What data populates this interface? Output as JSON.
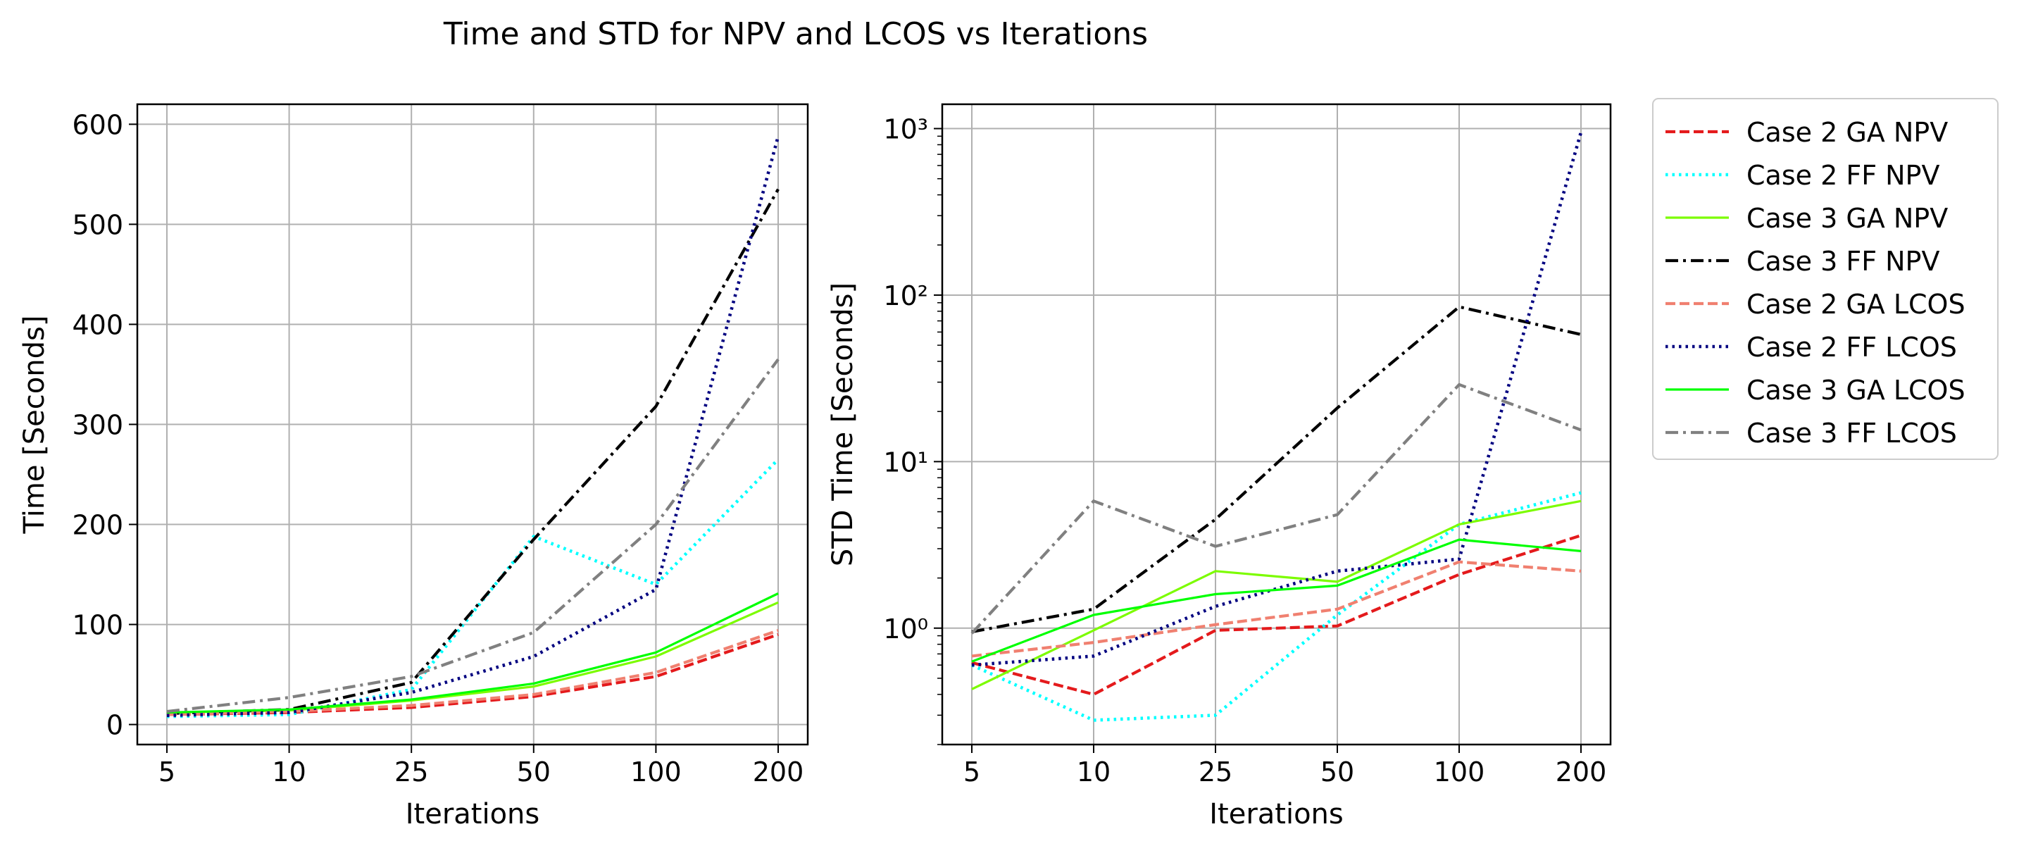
{
  "figure": {
    "title": "Time and STD for NPV and LCOS vs Iterations"
  },
  "legend": {
    "placement": "outside-right-top",
    "entries": [
      {
        "label": "Case 2 GA NPV",
        "color": "#e41a1c",
        "style": "dashed"
      },
      {
        "label": "Case 2 FF NPV",
        "color": "#00ffff",
        "style": "dotted"
      },
      {
        "label": "Case 3 GA NPV",
        "color": "#7cfc00",
        "style": "solid"
      },
      {
        "label": "Case 3 FF NPV",
        "color": "#000000",
        "style": "dashdot"
      },
      {
        "label": "Case 2 GA LCOS",
        "color": "#f08070",
        "style": "dashed"
      },
      {
        "label": "Case 2 FF LCOS",
        "color": "#000080",
        "style": "dotted"
      },
      {
        "label": "Case 3 GA LCOS",
        "color": "#00ff00",
        "style": "solid"
      },
      {
        "label": "Case 3 FF LCOS",
        "color": "#808080",
        "style": "dashdot"
      }
    ]
  },
  "chart_data": [
    {
      "type": "line",
      "title": "",
      "xlabel": "Iterations",
      "ylabel": "Time [Seconds]",
      "x_scale": "categorical",
      "y_scale": "linear",
      "categories": [
        "5",
        "10",
        "25",
        "50",
        "100",
        "200"
      ],
      "ylim": [
        -20,
        620
      ],
      "yticks": [
        0,
        100,
        200,
        300,
        400,
        500,
        600
      ],
      "ytick_labels": [
        "0",
        "100",
        "200",
        "300",
        "400",
        "500",
        "600"
      ],
      "grid": true,
      "series": [
        {
          "name": "Case 2 GA NPV",
          "values": [
            10,
            12,
            17,
            28,
            48,
            90
          ]
        },
        {
          "name": "Case 2 FF NPV",
          "values": [
            8,
            10,
            35,
            188,
            140,
            265
          ]
        },
        {
          "name": "Case 3 GA NPV",
          "values": [
            12,
            14,
            24,
            38,
            68,
            122
          ]
        },
        {
          "name": "Case 3 FF NPV",
          "values": [
            11,
            15,
            42,
            185,
            318,
            535
          ]
        },
        {
          "name": "Case 2 GA LCOS",
          "values": [
            10,
            13,
            19,
            30,
            52,
            94
          ]
        },
        {
          "name": "Case 2 FF LCOS",
          "values": [
            9,
            12,
            32,
            68,
            135,
            588
          ]
        },
        {
          "name": "Case 3 GA LCOS",
          "values": [
            12,
            15,
            25,
            41,
            72,
            131
          ]
        },
        {
          "name": "Case 3 FF LCOS",
          "values": [
            13,
            27,
            48,
            92,
            200,
            365
          ]
        }
      ]
    },
    {
      "type": "line",
      "title": "",
      "xlabel": "Iterations",
      "ylabel": "STD Time [Seconds]",
      "x_scale": "categorical",
      "y_scale": "log",
      "categories": [
        "5",
        "10",
        "25",
        "50",
        "100",
        "200"
      ],
      "ylim": [
        0.2,
        1400
      ],
      "yticks": [
        1,
        10,
        100,
        1000
      ],
      "ytick_labels": [
        "10⁰",
        "10¹",
        "10²",
        "10³"
      ],
      "grid": true,
      "series": [
        {
          "name": "Case 2 GA NPV",
          "values": [
            0.62,
            0.4,
            0.97,
            1.03,
            2.1,
            3.6
          ]
        },
        {
          "name": "Case 2 FF NPV",
          "values": [
            0.6,
            0.28,
            0.3,
            1.2,
            4.2,
            6.5
          ]
        },
        {
          "name": "Case 3 GA NPV",
          "values": [
            0.43,
            0.97,
            2.2,
            1.9,
            4.2,
            5.8
          ]
        },
        {
          "name": "Case 3 FF NPV",
          "values": [
            0.95,
            1.3,
            4.5,
            21,
            85,
            58
          ]
        },
        {
          "name": "Case 2 GA LCOS",
          "values": [
            0.68,
            0.82,
            1.05,
            1.3,
            2.5,
            2.2
          ]
        },
        {
          "name": "Case 2 FF LCOS",
          "values": [
            0.6,
            0.68,
            1.35,
            2.2,
            2.6,
            950
          ]
        },
        {
          "name": "Case 3 GA LCOS",
          "values": [
            0.63,
            1.2,
            1.6,
            1.8,
            3.4,
            2.9
          ]
        },
        {
          "name": "Case 3 FF LCOS",
          "values": [
            0.93,
            5.8,
            3.1,
            4.8,
            29,
            15.5
          ]
        }
      ]
    }
  ]
}
